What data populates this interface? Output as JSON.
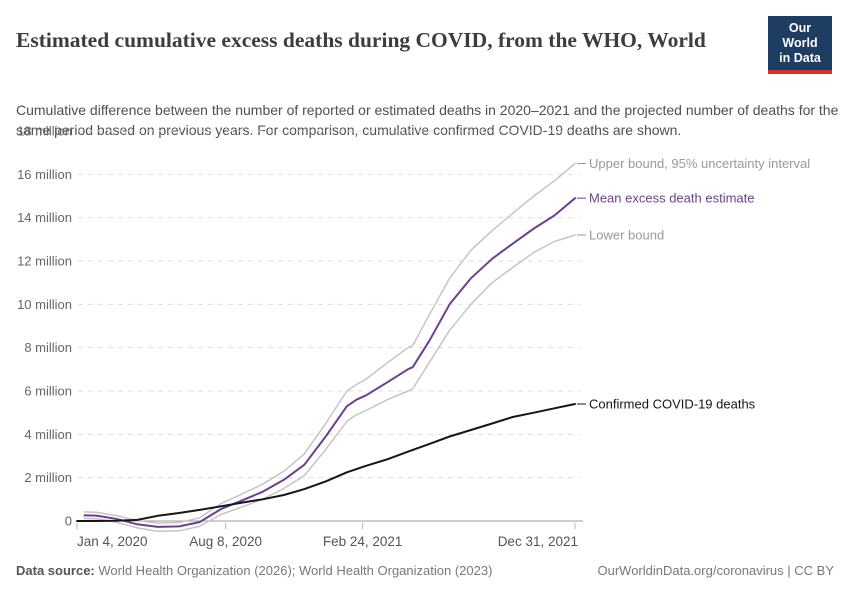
{
  "logo": {
    "line1": "Our World",
    "line2": "in Data",
    "bg": "#1d3d63",
    "stripe": "#d6332f"
  },
  "footer": {
    "datasource_label": "Data source:",
    "datasource": " World Health Organization (2026); World Health Organization (2023)",
    "link": "OurWorldinData.org/coronavirus | CC BY"
  },
  "chart_data": {
    "type": "line",
    "title": "Estimated cumulative excess deaths during COVID, from the WHO, World",
    "subtitle": "Cumulative difference between the number of reported or estimated deaths in 2020–2021 and the projected number of deaths for the same period based on previous years. For comparison, cumulative confirmed COVID-19 deaths are shown.",
    "x_type": "date",
    "x_range": [
      "2020-01-04",
      "2021-12-31"
    ],
    "ylim": [
      0,
      18
    ],
    "y_unit": "million",
    "grid": "horizontal-dashed",
    "legend_position": "end-of-line labels",
    "x_ticks": [
      {
        "date": "2020-01-04",
        "label": "Jan 4, 2020"
      },
      {
        "date": "2020-08-08",
        "label": "Aug 8, 2020"
      },
      {
        "date": "2021-02-24",
        "label": "Feb 24, 2021"
      },
      {
        "date": "2021-12-31",
        "label": "Dec 31, 2021"
      }
    ],
    "y_ticks": [
      {
        "value": 0,
        "label": "0"
      },
      {
        "value": 2,
        "label": "2 million"
      },
      {
        "value": 4,
        "label": "4 million"
      },
      {
        "value": 6,
        "label": "6 million"
      },
      {
        "value": 8,
        "label": "8 million"
      },
      {
        "value": 10,
        "label": "10 million"
      },
      {
        "value": 12,
        "label": "12 million"
      },
      {
        "value": 14,
        "label": "14 million"
      },
      {
        "value": 16,
        "label": "16 million"
      },
      {
        "value": 18,
        "label": "18 million"
      }
    ],
    "series": [
      {
        "name": "Upper bound, 95% uncertainty interval",
        "color": "#c5c5c5",
        "label_color": "#9a9a9a",
        "width": 1.5,
        "points": [
          [
            "2020-01-15",
            0.42
          ],
          [
            "2020-02-01",
            0.4
          ],
          [
            "2020-03-01",
            0.25
          ],
          [
            "2020-04-01",
            0.02
          ],
          [
            "2020-05-01",
            -0.09
          ],
          [
            "2020-06-01",
            -0.07
          ],
          [
            "2020-07-01",
            0.15
          ],
          [
            "2020-08-01",
            0.8
          ],
          [
            "2020-09-01",
            1.25
          ],
          [
            "2020-10-01",
            1.7
          ],
          [
            "2020-11-01",
            2.3
          ],
          [
            "2020-12-01",
            3.1
          ],
          [
            "2021-01-01",
            4.5
          ],
          [
            "2021-02-01",
            6.0
          ],
          [
            "2021-02-15",
            6.3
          ],
          [
            "2021-03-01",
            6.55
          ],
          [
            "2021-04-01",
            7.3
          ],
          [
            "2021-05-01",
            8.0
          ],
          [
            "2021-05-08",
            8.1
          ],
          [
            "2021-06-01",
            9.5
          ],
          [
            "2021-07-01",
            11.2
          ],
          [
            "2021-08-01",
            12.5
          ],
          [
            "2021-09-01",
            13.4
          ],
          [
            "2021-10-01",
            14.2
          ],
          [
            "2021-11-01",
            15.0
          ],
          [
            "2021-12-01",
            15.7
          ],
          [
            "2021-12-31",
            16.5
          ]
        ]
      },
      {
        "name": "Lower bound",
        "color": "#c5c5c5",
        "label_color": "#9a9a9a",
        "width": 1.5,
        "points": [
          [
            "2020-01-15",
            0.12
          ],
          [
            "2020-02-01",
            0.1
          ],
          [
            "2020-03-01",
            -0.05
          ],
          [
            "2020-04-01",
            -0.32
          ],
          [
            "2020-05-01",
            -0.48
          ],
          [
            "2020-06-01",
            -0.45
          ],
          [
            "2020-07-01",
            -0.25
          ],
          [
            "2020-08-01",
            0.3
          ],
          [
            "2020-09-01",
            0.65
          ],
          [
            "2020-10-01",
            1.0
          ],
          [
            "2020-11-01",
            1.5
          ],
          [
            "2020-12-01",
            2.1
          ],
          [
            "2021-01-01",
            3.3
          ],
          [
            "2021-02-01",
            4.6
          ],
          [
            "2021-02-15",
            4.9
          ],
          [
            "2021-03-01",
            5.1
          ],
          [
            "2021-04-01",
            5.6
          ],
          [
            "2021-05-01",
            6.0
          ],
          [
            "2021-05-08",
            6.1
          ],
          [
            "2021-06-01",
            7.3
          ],
          [
            "2021-07-01",
            8.8
          ],
          [
            "2021-08-01",
            10.0
          ],
          [
            "2021-09-01",
            11.0
          ],
          [
            "2021-10-01",
            11.7
          ],
          [
            "2021-11-01",
            12.4
          ],
          [
            "2021-12-01",
            12.9
          ],
          [
            "2021-12-31",
            13.2
          ]
        ]
      },
      {
        "name": "Mean excess death estimate",
        "color": "#6d3e91",
        "label_color": "#6d3e91",
        "width": 2,
        "points": [
          [
            "2020-01-15",
            0.26
          ],
          [
            "2020-02-01",
            0.25
          ],
          [
            "2020-03-01",
            0.1
          ],
          [
            "2020-04-01",
            -0.15
          ],
          [
            "2020-05-01",
            -0.27
          ],
          [
            "2020-06-01",
            -0.25
          ],
          [
            "2020-07-01",
            -0.05
          ],
          [
            "2020-08-01",
            0.55
          ],
          [
            "2020-09-01",
            0.95
          ],
          [
            "2020-10-01",
            1.35
          ],
          [
            "2020-11-01",
            1.9
          ],
          [
            "2020-12-01",
            2.6
          ],
          [
            "2021-01-01",
            3.9
          ],
          [
            "2021-02-01",
            5.3
          ],
          [
            "2021-02-15",
            5.6
          ],
          [
            "2021-03-01",
            5.8
          ],
          [
            "2021-04-01",
            6.4
          ],
          [
            "2021-05-01",
            7.0
          ],
          [
            "2021-05-08",
            7.1
          ],
          [
            "2021-06-01",
            8.3
          ],
          [
            "2021-07-01",
            10.0
          ],
          [
            "2021-08-01",
            11.2
          ],
          [
            "2021-09-01",
            12.1
          ],
          [
            "2021-10-01",
            12.8
          ],
          [
            "2021-11-01",
            13.5
          ],
          [
            "2021-12-01",
            14.1
          ],
          [
            "2021-12-31",
            14.9
          ]
        ]
      },
      {
        "name": "Confirmed COVID-19 deaths",
        "color": "#161616",
        "label_color": "#161616",
        "width": 2,
        "points": [
          [
            "2020-01-04",
            0.0
          ],
          [
            "2020-02-01",
            0.0
          ],
          [
            "2020-03-01",
            0.01
          ],
          [
            "2020-04-01",
            0.05
          ],
          [
            "2020-05-01",
            0.24
          ],
          [
            "2020-06-01",
            0.37
          ],
          [
            "2020-07-01",
            0.51
          ],
          [
            "2020-08-01",
            0.68
          ],
          [
            "2020-09-01",
            0.85
          ],
          [
            "2020-10-01",
            1.0
          ],
          [
            "2020-11-01",
            1.2
          ],
          [
            "2020-12-01",
            1.47
          ],
          [
            "2021-01-01",
            1.83
          ],
          [
            "2021-02-01",
            2.25
          ],
          [
            "2021-03-01",
            2.55
          ],
          [
            "2021-04-01",
            2.85
          ],
          [
            "2021-05-01",
            3.2
          ],
          [
            "2021-06-01",
            3.55
          ],
          [
            "2021-07-01",
            3.9
          ],
          [
            "2021-08-01",
            4.2
          ],
          [
            "2021-09-01",
            4.5
          ],
          [
            "2021-10-01",
            4.8
          ],
          [
            "2021-11-01",
            5.0
          ],
          [
            "2021-12-01",
            5.2
          ],
          [
            "2021-12-31",
            5.4
          ]
        ]
      }
    ]
  }
}
